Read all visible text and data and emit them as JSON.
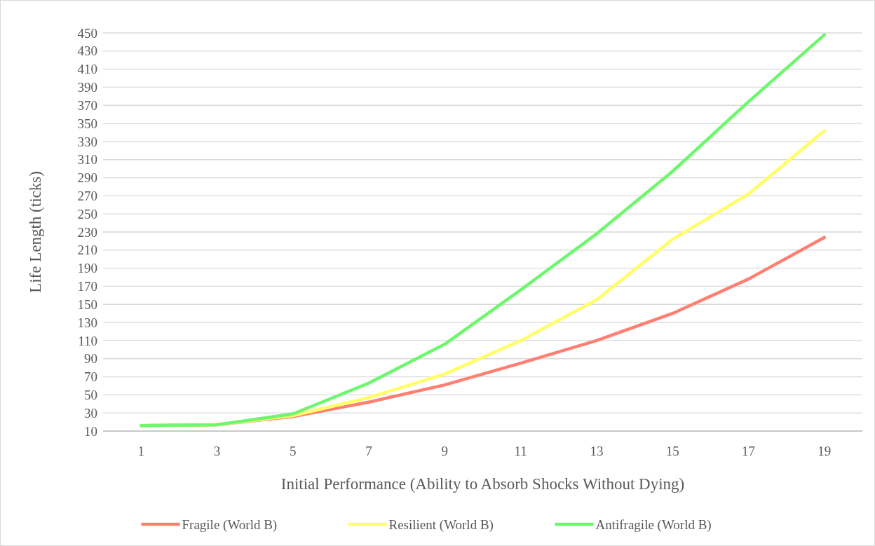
{
  "chart_data": {
    "type": "line",
    "xlabel": "Initial Performance (Ability to Absorb Shocks Without Dying)",
    "ylabel": "Life Length (ticks)",
    "x": [
      1,
      3,
      5,
      7,
      9,
      11,
      13,
      15,
      17,
      19
    ],
    "xlim": [
      0,
      20
    ],
    "xticks": [
      1,
      3,
      5,
      7,
      9,
      11,
      13,
      15,
      17,
      19
    ],
    "series": [
      {
        "name": "Fragile (World B)",
        "color": "#ff7f72",
        "values": [
          16,
          17,
          26,
          42,
          61,
          85,
          110,
          140,
          178,
          224
        ]
      },
      {
        "name": "Resilient (World B)",
        "color": "#ffff66",
        "values": [
          16,
          17,
          27,
          47,
          73,
          110,
          155,
          222,
          272,
          342
        ]
      },
      {
        "name": "Antifragile (World B)",
        "color": "#6cf86c",
        "values": [
          16,
          17,
          29,
          63,
          106,
          166,
          228,
          297,
          374,
          448
        ]
      }
    ],
    "ylim": [
      10,
      450
    ],
    "yticks": [
      10,
      30,
      50,
      70,
      90,
      110,
      130,
      150,
      170,
      190,
      210,
      230,
      250,
      270,
      290,
      310,
      330,
      350,
      370,
      390,
      410,
      430,
      450
    ],
    "grid": "y",
    "legend": "bottom",
    "marker": "none",
    "line_style": "solid"
  }
}
